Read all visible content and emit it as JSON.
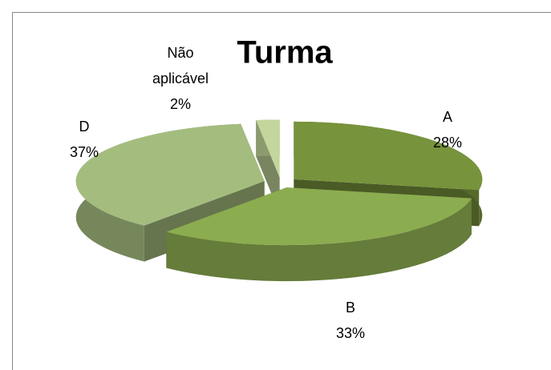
{
  "chart_data": {
    "type": "pie3d",
    "title": "Turma",
    "categories": [
      "A",
      "B",
      "D",
      "Não aplicável"
    ],
    "values": [
      28,
      33,
      37,
      2
    ],
    "value_labels": [
      "28%",
      "33%",
      "37%",
      "2%"
    ],
    "colors": [
      "#77933c",
      "#8cac50",
      "#a4bd7e",
      "#c3d69b"
    ],
    "exploded": true
  }
}
